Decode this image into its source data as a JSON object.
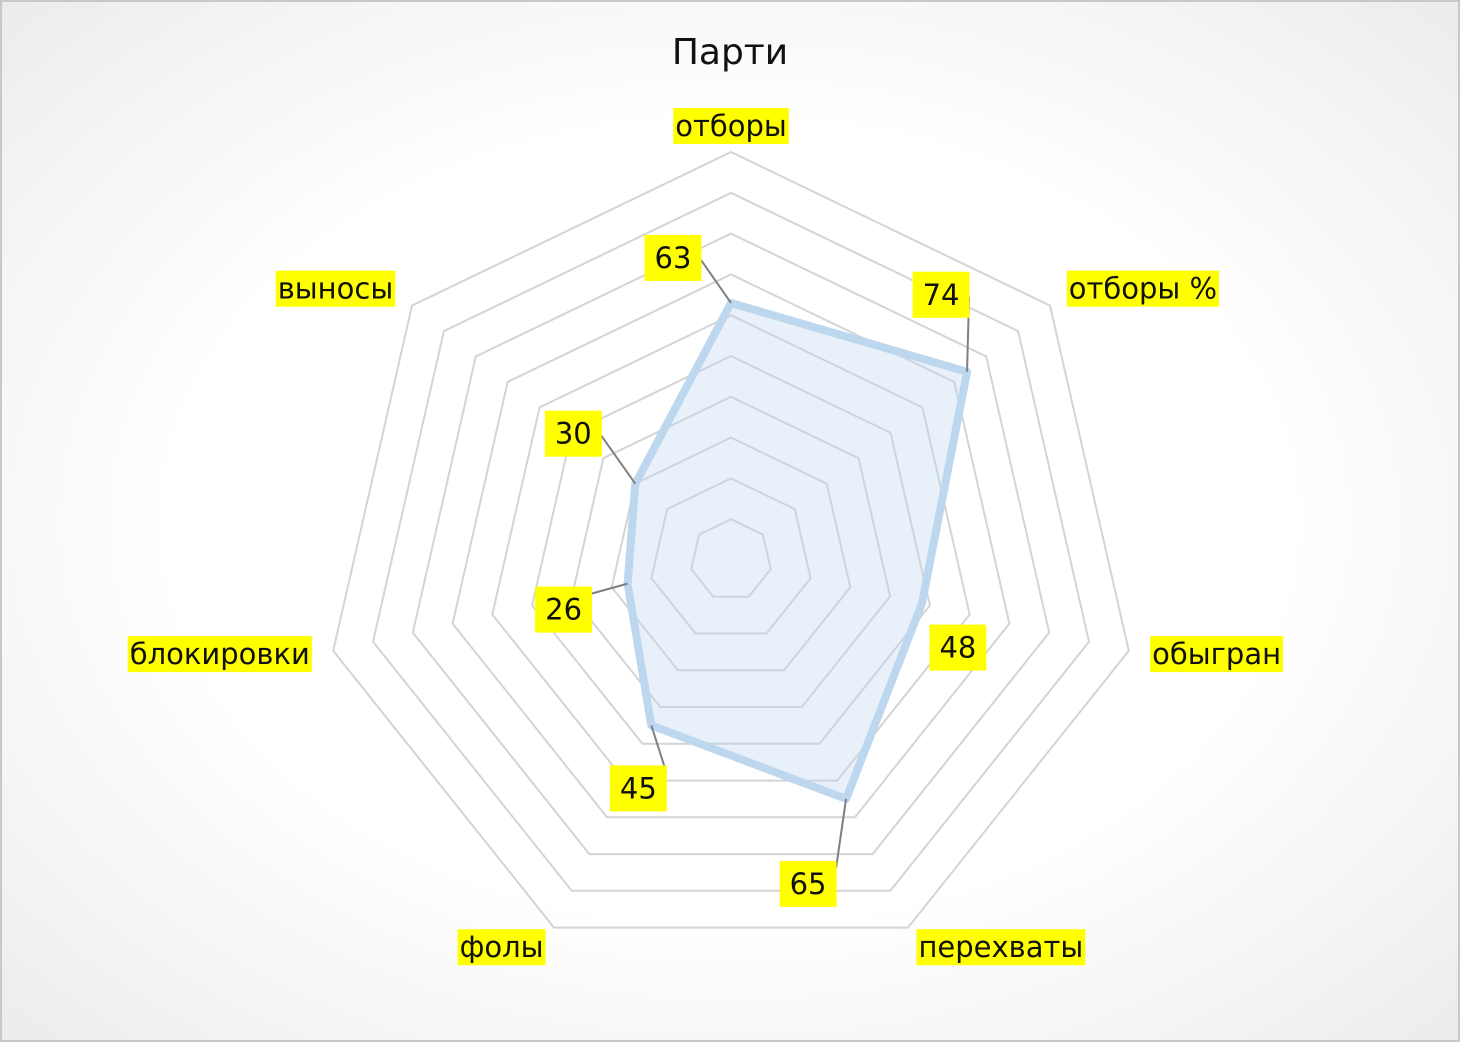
{
  "chart_data": {
    "type": "radar",
    "title": "Парти",
    "categories": [
      "отборы",
      "отборы %",
      "обыгран",
      "перехваты",
      "фолы",
      "блокировки",
      "выносы"
    ],
    "series": [
      {
        "name": "Парти",
        "color": "#bdd7ee",
        "values": [
          63,
          74,
          48,
          65,
          45,
          26,
          30
        ]
      }
    ],
    "rlim": [
      0,
      100
    ],
    "rticks": [
      0,
      10,
      20,
      30,
      40,
      50,
      60,
      70,
      80,
      90,
      100
    ],
    "grid": true,
    "label_highlight": "#ffff00"
  }
}
